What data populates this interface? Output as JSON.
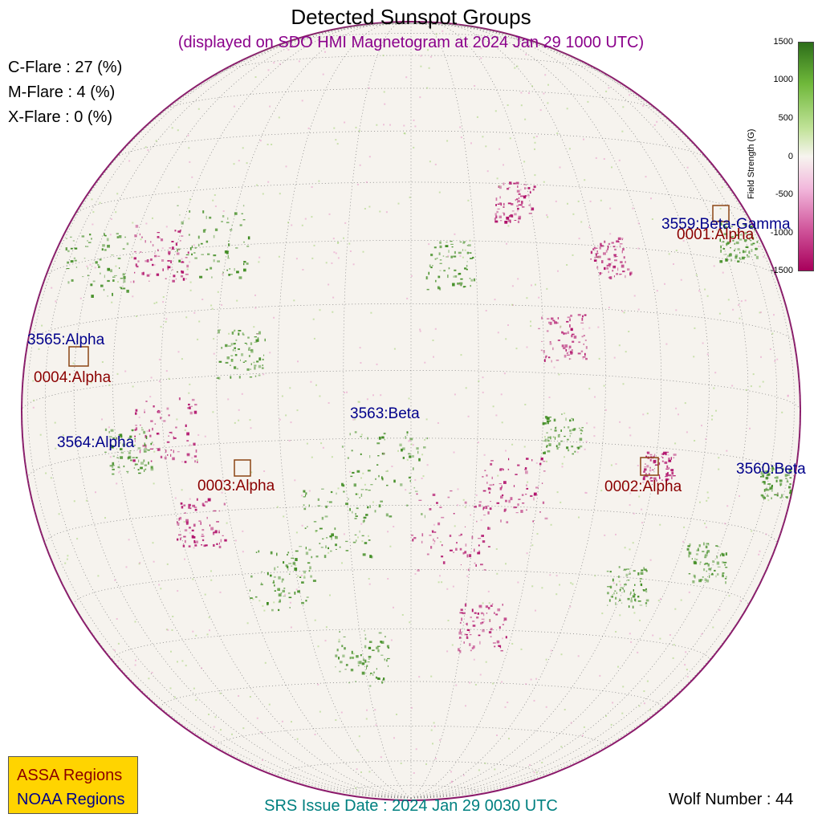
{
  "title": "Detected Sunspot Groups",
  "subtitle": "(displayed on SDO HMI Magnetogram at 2024 Jan 29 1000 UTC)",
  "flares": [
    {
      "label": "C-Flare : 27 (%)"
    },
    {
      "label": "M-Flare :  4 (%)"
    },
    {
      "label": "X-Flare :  0 (%)"
    }
  ],
  "colorbar": {
    "title": "Field Strength (G)",
    "ticks": [
      "1500",
      "1000",
      "500",
      "0",
      "-500",
      "-1000",
      "-1500"
    ],
    "colors": {
      "positive": "#2d6e1a",
      "zero": "#f7f4ef",
      "negative": "#a8005b"
    }
  },
  "noaa_regions": [
    {
      "label": "3559:Beta-Gamma"
    },
    {
      "label": "3565:Alpha"
    },
    {
      "label": "3564:Alpha"
    },
    {
      "label": "3563:Beta"
    },
    {
      "label": "3560:Beta"
    }
  ],
  "assa_regions": [
    {
      "label": "0001:Alpha"
    },
    {
      "label": "0004:Alpha"
    },
    {
      "label": "0003:Alpha"
    },
    {
      "label": "0002:Alpha"
    }
  ],
  "legend": {
    "assa": "ASSA Regions",
    "noaa": "NOAA Regions",
    "colors": {
      "assa": "#8b0000",
      "noaa": "#00008b",
      "background": "#ffd400"
    }
  },
  "srs_issue": "SRS Issue Date : 2024 Jan 29 0030 UTC",
  "wolf_number": "Wolf Number : 44"
}
